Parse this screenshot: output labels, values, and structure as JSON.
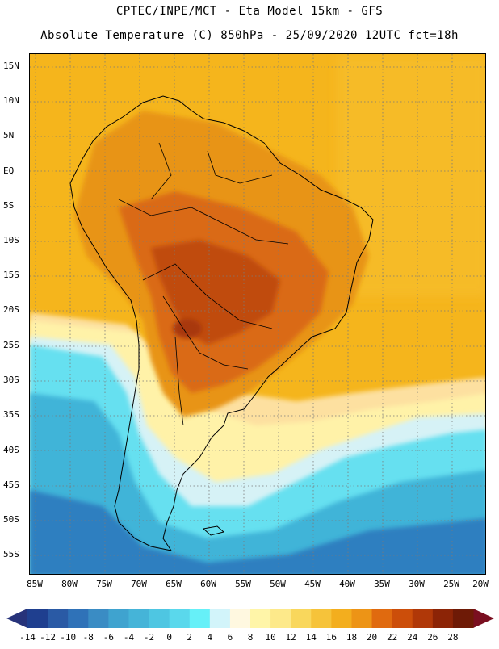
{
  "header": {
    "line1": "CPTEC/INPE/MCT -  Eta Model 15km - GFS",
    "line2": "Absolute Temperature (C) 850hPa - 25/09/2020 12UTC fct=18h"
  },
  "latitude_labels": [
    "15N",
    "10N",
    "5N",
    "EQ",
    "5S",
    "10S",
    "15S",
    "20S",
    "25S",
    "30S",
    "35S",
    "40S",
    "45S",
    "50S",
    "55S"
  ],
  "longitude_labels": [
    "85W",
    "80W",
    "75W",
    "70W",
    "65W",
    "60W",
    "55W",
    "50W",
    "45W",
    "40W",
    "35W",
    "30W",
    "25W",
    "20W"
  ],
  "colorbar": {
    "labels": [
      "-14",
      "-12",
      "-10",
      "-8",
      "-6",
      "-4",
      "-2",
      "0",
      "2",
      "4",
      "6",
      "8",
      "10",
      "12",
      "14",
      "16",
      "18",
      "20",
      "22",
      "24",
      "26",
      "28"
    ],
    "colors": [
      "#1f3f8f",
      "#2a5aa5",
      "#2f72b8",
      "#3a8cc4",
      "#3fa3cf",
      "#45b4d8",
      "#4ec6e2",
      "#5ad8ec",
      "#66f0f8",
      "#d2f4fa",
      "#fff8e0",
      "#fff5a8",
      "#fde98a",
      "#f9d75c",
      "#f6c33a",
      "#f3ae1e",
      "#ed9416",
      "#e06a0f",
      "#cc4e0a",
      "#b03808",
      "#8c2406",
      "#6e1a06"
    ],
    "under_color": "#27337a",
    "over_color": "#7a0f20"
  },
  "map_colors": {
    "background": "#f5b51c",
    "continent_warm": "#e89418",
    "continent_hot": "#da6a12",
    "core_hottest": "#c04c0c",
    "ocean_south_light": "#fff2a8",
    "ocean_south_pale": "#fde0a0",
    "cold_band": "#66e0f0",
    "cold_band_deep": "#3fb4d8",
    "far_south": "#2f7fc0"
  }
}
